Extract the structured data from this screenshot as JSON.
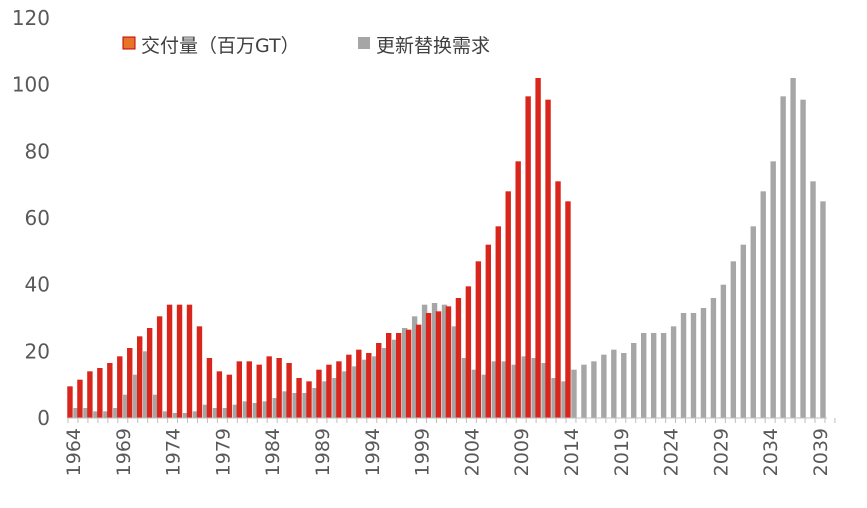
{
  "chart_data": {
    "type": "bar",
    "title": "",
    "xlabel": "",
    "ylabel": "",
    "ylim": [
      0,
      120
    ],
    "yticks": [
      0,
      20,
      40,
      60,
      80,
      100,
      120
    ],
    "grid": false,
    "legend_position": "top-left",
    "x_start": 1964,
    "x_end": 2040,
    "x_tick_labels": [
      "1964",
      "1969",
      "1974",
      "1979",
      "1984",
      "1989",
      "1994",
      "1999",
      "2004",
      "2009",
      "2014",
      "2019",
      "2024",
      "2029",
      "2034",
      "2039"
    ],
    "series": [
      {
        "name": "交付量（百万GT）",
        "color": "#d9261c",
        "legend_color": "#e8742a",
        "start_year": 1964,
        "values": [
          9.5,
          11.5,
          14,
          15,
          16.5,
          18.5,
          21,
          24.5,
          27,
          30.5,
          34,
          34,
          34,
          27.5,
          18,
          14,
          13,
          17,
          17,
          16,
          18.5,
          18,
          16.5,
          12,
          11,
          14.5,
          16,
          17,
          19,
          20.5,
          19.5,
          22.5,
          25.5,
          25.5,
          26.5,
          28,
          31.5,
          32,
          33.5,
          36,
          39.5,
          47,
          52,
          57.5,
          68,
          77,
          96.5,
          102,
          95.5,
          71,
          65
        ]
      },
      {
        "name": "更新替换需求",
        "color": "#a6a6a6",
        "legend_color": "#a6a6a6",
        "start_year": 1964,
        "values": [
          3,
          3,
          2,
          2,
          3,
          7,
          13,
          20,
          7,
          2,
          1.5,
          1.5,
          2,
          4,
          3,
          3,
          4,
          5,
          4.5,
          5,
          6,
          8,
          7.5,
          7.5,
          9,
          11,
          12,
          14,
          15.5,
          17.5,
          18.5,
          21,
          23.5,
          27,
          30.5,
          34,
          34.5,
          34,
          27.5,
          18,
          14.5,
          13,
          17,
          17,
          16,
          18.5,
          18,
          16.5,
          12,
          11,
          14.5,
          16,
          17,
          19,
          20.5,
          19.5,
          22.5,
          25.5,
          25.5,
          25.5,
          27.5,
          31.5,
          31.5,
          33,
          36,
          40,
          47,
          52,
          57.5,
          68,
          77,
          96.5,
          102,
          95.5,
          71,
          65
        ]
      }
    ]
  }
}
